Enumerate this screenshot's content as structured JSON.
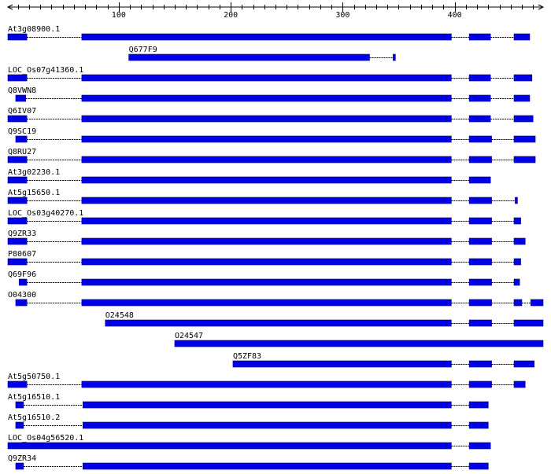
{
  "ruler": {
    "ticks": [
      {
        "label": "100",
        "value": 100
      },
      {
        "label": "200",
        "value": 200
      },
      {
        "label": "300",
        "value": 300
      },
      {
        "label": "400",
        "value": 400
      }
    ],
    "range": [
      1,
      479
    ]
  },
  "colors": {
    "block": "#0000e6",
    "line": "#000000"
  },
  "tracks": [
    {
      "name": "At3g08900.1",
      "blocks": [
        [
          1,
          18
        ],
        [
          67,
          397
        ],
        [
          413,
          432
        ],
        [
          453,
          467
        ]
      ]
    },
    {
      "name": "Q677F9",
      "blocks": [
        [
          109,
          324
        ],
        [
          345,
          347
        ]
      ]
    },
    {
      "name": "LOC_Os07g41360.1",
      "blocks": [
        [
          1,
          18
        ],
        [
          67,
          397
        ],
        [
          413,
          432
        ],
        [
          453,
          469
        ]
      ]
    },
    {
      "name": "Q8VWN8",
      "blocks": [
        [
          8,
          17
        ],
        [
          67,
          397
        ],
        [
          413,
          432
        ],
        [
          453,
          467
        ]
      ]
    },
    {
      "name": "Q6IV07",
      "blocks": [
        [
          1,
          18
        ],
        [
          67,
          397
        ],
        [
          413,
          432
        ],
        [
          453,
          470
        ]
      ]
    },
    {
      "name": "Q9SC19",
      "blocks": [
        [
          8,
          18
        ],
        [
          67,
          397
        ],
        [
          413,
          433
        ],
        [
          453,
          472
        ]
      ]
    },
    {
      "name": "Q8RU27",
      "blocks": [
        [
          1,
          18
        ],
        [
          67,
          397
        ],
        [
          413,
          433
        ],
        [
          453,
          472
        ]
      ]
    },
    {
      "name": "At3g02230.1",
      "blocks": [
        [
          1,
          18
        ],
        [
          67,
          397
        ],
        [
          413,
          432
        ]
      ]
    },
    {
      "name": "At5g15650.1",
      "blocks": [
        [
          1,
          18
        ],
        [
          67,
          397
        ],
        [
          413,
          433
        ],
        [
          454,
          456
        ]
      ]
    },
    {
      "name": "LOC_Os03g40270.1",
      "blocks": [
        [
          1,
          18
        ],
        [
          67,
          397
        ],
        [
          413,
          433
        ],
        [
          453,
          459
        ]
      ]
    },
    {
      "name": "Q9ZR33",
      "blocks": [
        [
          1,
          18
        ],
        [
          67,
          397
        ],
        [
          413,
          433
        ],
        [
          453,
          463
        ]
      ]
    },
    {
      "name": "P80607",
      "blocks": [
        [
          1,
          18
        ],
        [
          67,
          397
        ],
        [
          413,
          433
        ],
        [
          453,
          459
        ]
      ]
    },
    {
      "name": "Q69F96",
      "blocks": [
        [
          11,
          18
        ],
        [
          67,
          397
        ],
        [
          413,
          433
        ],
        [
          453,
          458
        ]
      ]
    },
    {
      "name": "O04300",
      "blocks": [
        [
          8,
          18
        ],
        [
          67,
          397
        ],
        [
          413,
          433
        ],
        [
          453,
          460
        ],
        [
          468,
          479
        ]
      ]
    },
    {
      "name": "O24548",
      "blocks": [
        [
          88,
          397
        ],
        [
          413,
          433
        ],
        [
          453,
          479
        ]
      ]
    },
    {
      "name": "O24547",
      "blocks": [
        [
          150,
          479
        ]
      ]
    },
    {
      "name": "Q5ZF83",
      "blocks": [
        [
          202,
          397
        ],
        [
          413,
          433
        ],
        [
          453,
          471
        ]
      ]
    },
    {
      "name": "At5g50750.1",
      "blocks": [
        [
          1,
          18
        ],
        [
          67,
          397
        ],
        [
          413,
          433
        ],
        [
          453,
          463
        ]
      ]
    },
    {
      "name": "At5g16510.1",
      "blocks": [
        [
          8,
          15
        ],
        [
          68,
          397
        ],
        [
          413,
          430
        ]
      ]
    },
    {
      "name": "At5g16510.2",
      "blocks": [
        [
          8,
          15
        ],
        [
          68,
          397
        ],
        [
          413,
          430
        ]
      ]
    },
    {
      "name": "LOC_Os04g56520.1",
      "blocks": [
        [
          1,
          397
        ],
        [
          413,
          432
        ]
      ]
    },
    {
      "name": "Q9ZR34",
      "blocks": [
        [
          8,
          15
        ],
        [
          68,
          397
        ],
        [
          413,
          430
        ]
      ]
    }
  ]
}
